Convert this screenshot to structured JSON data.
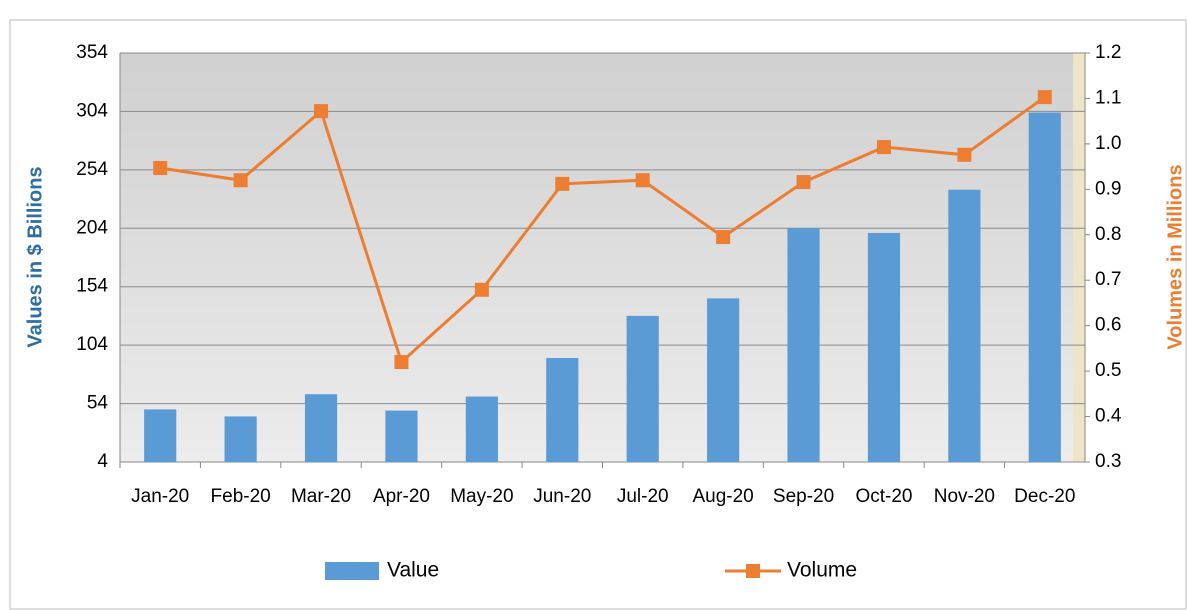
{
  "chart_data": {
    "type": "bar_line",
    "y_label": "Values in $ Billions",
    "y2_label": "Volumes in Millions",
    "categories": [
      "Jan-20",
      "Feb-20",
      "Mar-20",
      "Apr-20",
      "May-20",
      "Jun-20",
      "Jul-20",
      "Aug-20",
      "Sep-20",
      "Oct-20",
      "Nov-20",
      "Dec-20"
    ],
    "series": [
      {
        "name": "Value",
        "type": "bar",
        "color": "#5b9bd5",
        "values": [
          49,
          43,
          62,
          48,
          60,
          93,
          129,
          144,
          204,
          200,
          237,
          303
        ]
      },
      {
        "name": "Volume",
        "type": "line",
        "axis": "y2",
        "color": "#ed7d31",
        "values": [
          0.947,
          0.92,
          1.072,
          0.52,
          0.679,
          0.912,
          0.92,
          0.795,
          0.916,
          0.993,
          0.976,
          1.103
        ]
      }
    ],
    "ylim": [
      4,
      354
    ],
    "yticks": [
      4,
      54,
      104,
      154,
      204,
      254,
      304,
      354
    ],
    "y2lim": [
      0.3,
      1.2
    ],
    "y2ticks": [
      0.3,
      0.4,
      0.5,
      0.6,
      0.7,
      0.8,
      0.9,
      {
        "value": 1,
        "label": "1.0"
      },
      1.1,
      1.2
    ],
    "grid": true,
    "legend": "bottom"
  }
}
